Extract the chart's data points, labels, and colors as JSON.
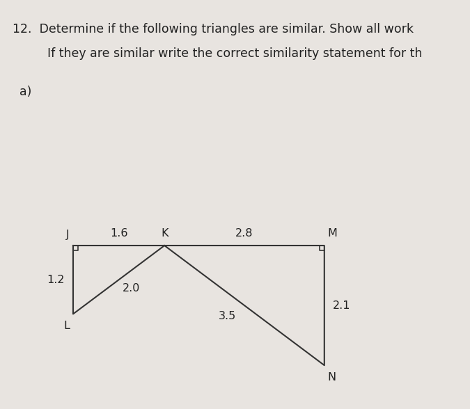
{
  "title_line1": "12.  Determine if the following triangles are similar. Show all work",
  "title_line2": "      If they are similar write the correct similarity statement for th",
  "part_label": "a)",
  "background_color": "#e8e4e0",
  "triangle1": {
    "J": [
      0.0,
      0.0
    ],
    "K": [
      1.6,
      0.0
    ],
    "L": [
      0.0,
      -1.2
    ],
    "sides": {
      "JK": "1.6",
      "JL": "1.2",
      "KL": "2.0"
    }
  },
  "triangle2": {
    "K": [
      1.6,
      0.0
    ],
    "M": [
      4.4,
      0.0
    ],
    "N": [
      4.4,
      -2.1
    ],
    "sides": {
      "KM": "2.8",
      "MN": "2.1",
      "KN": "3.5"
    }
  },
  "text_color": "#222222",
  "line_color": "#333333",
  "font_size_title": 12.5,
  "font_size_labels": 11.5,
  "font_size_part": 12.5
}
